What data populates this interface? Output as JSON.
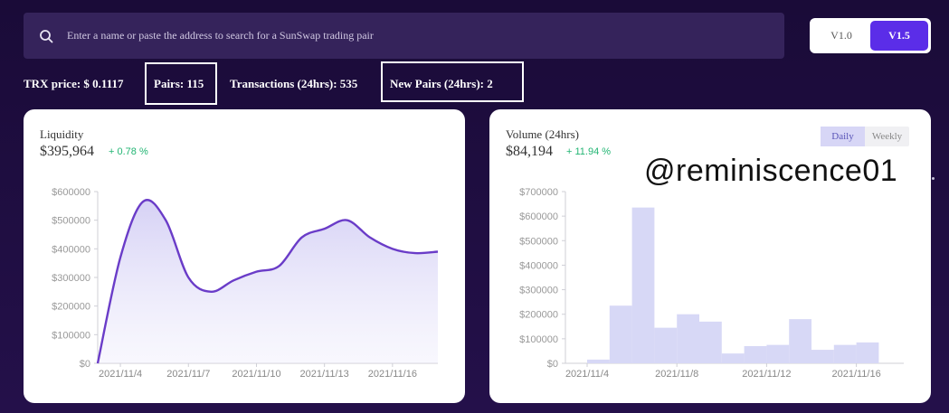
{
  "search": {
    "placeholder": "Enter a name or paste the address to search for a SunSwap trading pair",
    "icon": "search-icon"
  },
  "version_toggle": {
    "options": [
      "V1.0",
      "V1.5"
    ],
    "selected": "V1.5"
  },
  "stats": {
    "trx_price": "TRX price: $ 0.1117",
    "pairs": "Pairs: 115",
    "transactions": "Transactions (24hrs): 535",
    "new_pairs": "New Pairs (24hrs): 2"
  },
  "liquidity": {
    "title": "Liquidity",
    "value": "$395,964",
    "change": "+ 0.78 %"
  },
  "volume": {
    "title": "Volume (24hrs)",
    "value": "$84,194",
    "change": "+ 11.94 %",
    "tabs": [
      "Daily",
      "Weekly"
    ],
    "selected_tab": "Daily"
  },
  "watermark": "@reminiscence01",
  "colors": {
    "background": "#1e0d3f",
    "accent": "#5b2de8",
    "line": "#6a3cc8",
    "bar": "#d7d8f6",
    "positive": "#22b573"
  },
  "chart_data": [
    {
      "type": "area",
      "title": "Liquidity",
      "x_ticks": [
        "2021/11/4",
        "2021/11/7",
        "2021/11/10",
        "2021/11/13",
        "2021/11/16"
      ],
      "y_ticks": [
        "$0",
        "$100000",
        "$200000",
        "$300000",
        "$400000",
        "$500000",
        "$600000"
      ],
      "ylim": [
        0,
        600000
      ],
      "x": [
        "2021/11/3",
        "2021/11/4",
        "2021/11/5",
        "2021/11/6",
        "2021/11/7",
        "2021/11/8",
        "2021/11/9",
        "2021/11/10",
        "2021/11/11",
        "2021/11/12",
        "2021/11/13",
        "2021/11/14",
        "2021/11/15",
        "2021/11/16",
        "2021/11/17",
        "2021/11/18"
      ],
      "values": [
        0,
        370000,
        565000,
        500000,
        300000,
        250000,
        290000,
        320000,
        340000,
        440000,
        470000,
        500000,
        440000,
        400000,
        385000,
        390000
      ]
    },
    {
      "type": "bar",
      "title": "Volume (24hrs)",
      "x_ticks": [
        "2021/11/4",
        "2021/11/8",
        "2021/11/12",
        "2021/11/16"
      ],
      "y_ticks": [
        "$0",
        "$100000",
        "$200000",
        "$300000",
        "$400000",
        "$500000",
        "$600000",
        "$700000"
      ],
      "ylim": [
        0,
        700000
      ],
      "categories": [
        "2021/11/4",
        "2021/11/5",
        "2021/11/6",
        "2021/11/7",
        "2021/11/8",
        "2021/11/9",
        "2021/11/10",
        "2021/11/11",
        "2021/11/12",
        "2021/11/13",
        "2021/11/14",
        "2021/11/15",
        "2021/11/16",
        "2021/11/17"
      ],
      "values": [
        15000,
        235000,
        635000,
        145000,
        200000,
        170000,
        40000,
        70000,
        75000,
        180000,
        55000,
        75000,
        85000,
        0
      ]
    }
  ]
}
